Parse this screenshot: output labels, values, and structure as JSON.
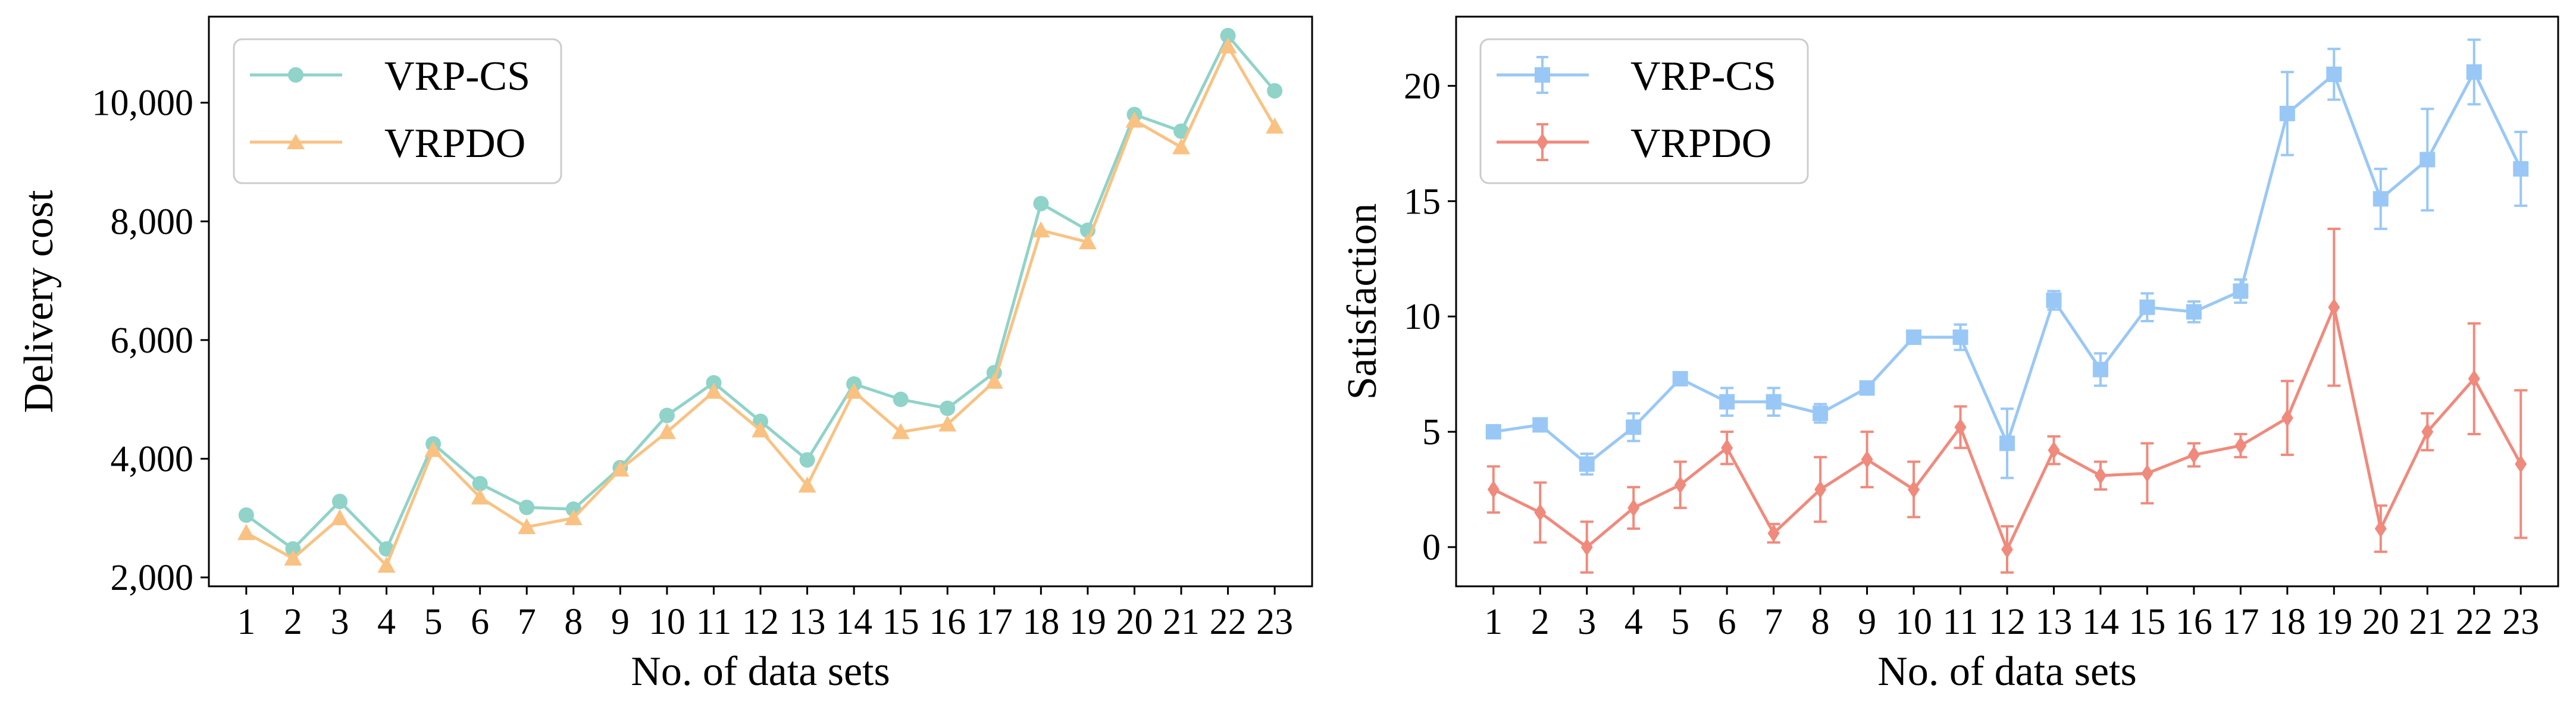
{
  "chart_data": [
    {
      "type": "line",
      "title": "",
      "xlabel": "No. of data sets",
      "ylabel": "Delivery cost",
      "x": [
        1,
        2,
        3,
        4,
        5,
        6,
        7,
        8,
        9,
        10,
        11,
        12,
        13,
        14,
        15,
        16,
        17,
        18,
        19,
        20,
        21,
        22,
        23
      ],
      "x_tick_labels": [
        "1",
        "2",
        "3",
        "4",
        "5",
        "6",
        "7",
        "8",
        "9",
        "10",
        "11",
        "12",
        "13",
        "14",
        "15",
        "16",
        "17",
        "18",
        "19",
        "20",
        "21",
        "22",
        "23"
      ],
      "xlim": [
        0.2,
        23.8
      ],
      "ylim": [
        1850,
        11450
      ],
      "y_ticks": [
        2000,
        4000,
        6000,
        8000,
        10000
      ],
      "y_tick_labels": [
        "2,000",
        "4,000",
        "6,000",
        "8,000",
        "10,000"
      ],
      "grid": false,
      "legend_position": "top-left",
      "series": [
        {
          "name": "VRP-CS",
          "color": "#8fd3c9",
          "marker": "circle",
          "values": [
            3050,
            2480,
            3280,
            2480,
            4250,
            3580,
            3180,
            3150,
            3850,
            4730,
            5280,
            4630,
            3980,
            5260,
            5000,
            4850,
            5450,
            8300,
            7850,
            9800,
            9520,
            11130,
            10200
          ]
        },
        {
          "name": "VRPDO",
          "color": "#f9c282",
          "marker": "triangle",
          "values": [
            2750,
            2320,
            3000,
            2200,
            4150,
            3350,
            2850,
            3000,
            3820,
            4450,
            5130,
            4480,
            3550,
            5130,
            4450,
            4580,
            5300,
            7850,
            7650,
            9700,
            9250,
            10950,
            9600
          ]
        }
      ]
    },
    {
      "type": "line",
      "title": "",
      "xlabel": "No. of data sets",
      "ylabel": "Satisfaction",
      "x": [
        1,
        2,
        3,
        4,
        5,
        6,
        7,
        8,
        9,
        10,
        11,
        12,
        13,
        14,
        15,
        16,
        17,
        18,
        19,
        20,
        21,
        22,
        23
      ],
      "x_tick_labels": [
        "1",
        "2",
        "3",
        "4",
        "5",
        "6",
        "7",
        "8",
        "9",
        "10",
        "11",
        "12",
        "13",
        "14",
        "15",
        "16",
        "17",
        "18",
        "19",
        "20",
        "21",
        "22",
        "23"
      ],
      "xlim": [
        0.2,
        23.8
      ],
      "ylim": [
        -1.7,
        23.0
      ],
      "y_ticks": [
        0,
        5,
        10,
        15,
        20
      ],
      "y_tick_labels": [
        "0",
        "5",
        "10",
        "15",
        "20"
      ],
      "grid": false,
      "legend_position": "top-left",
      "series": [
        {
          "name": "VRP-CS",
          "color": "#99c8f6",
          "marker": "square",
          "values": [
            5.0,
            5.3,
            3.6,
            5.2,
            7.3,
            6.3,
            6.3,
            5.8,
            6.9,
            9.1,
            9.1,
            4.5,
            10.7,
            7.7,
            10.4,
            10.2,
            11.1,
            18.8,
            20.5,
            15.1,
            16.8,
            20.6,
            16.4
          ],
          "error": [
            0.15,
            0.2,
            0.45,
            0.6,
            0.15,
            0.6,
            0.6,
            0.4,
            0.2,
            0.15,
            0.55,
            1.5,
            0.4,
            0.7,
            0.6,
            0.45,
            0.5,
            1.8,
            1.1,
            1.3,
            2.2,
            1.4,
            1.6
          ]
        },
        {
          "name": "VRPDO",
          "color": "#f08a7c",
          "marker": "diamond",
          "values": [
            2.5,
            1.5,
            0.0,
            1.7,
            2.7,
            4.3,
            0.6,
            2.5,
            3.8,
            2.5,
            5.2,
            -0.1,
            4.2,
            3.1,
            3.2,
            4.0,
            4.4,
            5.6,
            10.4,
            0.8,
            5.0,
            7.3,
            3.6
          ],
          "error": [
            1.0,
            1.3,
            1.1,
            0.9,
            1.0,
            0.7,
            0.4,
            1.4,
            1.2,
            1.2,
            0.9,
            1.0,
            0.6,
            0.6,
            1.3,
            0.5,
            0.5,
            1.6,
            3.4,
            1.0,
            0.8,
            2.4,
            3.2
          ]
        }
      ]
    }
  ]
}
